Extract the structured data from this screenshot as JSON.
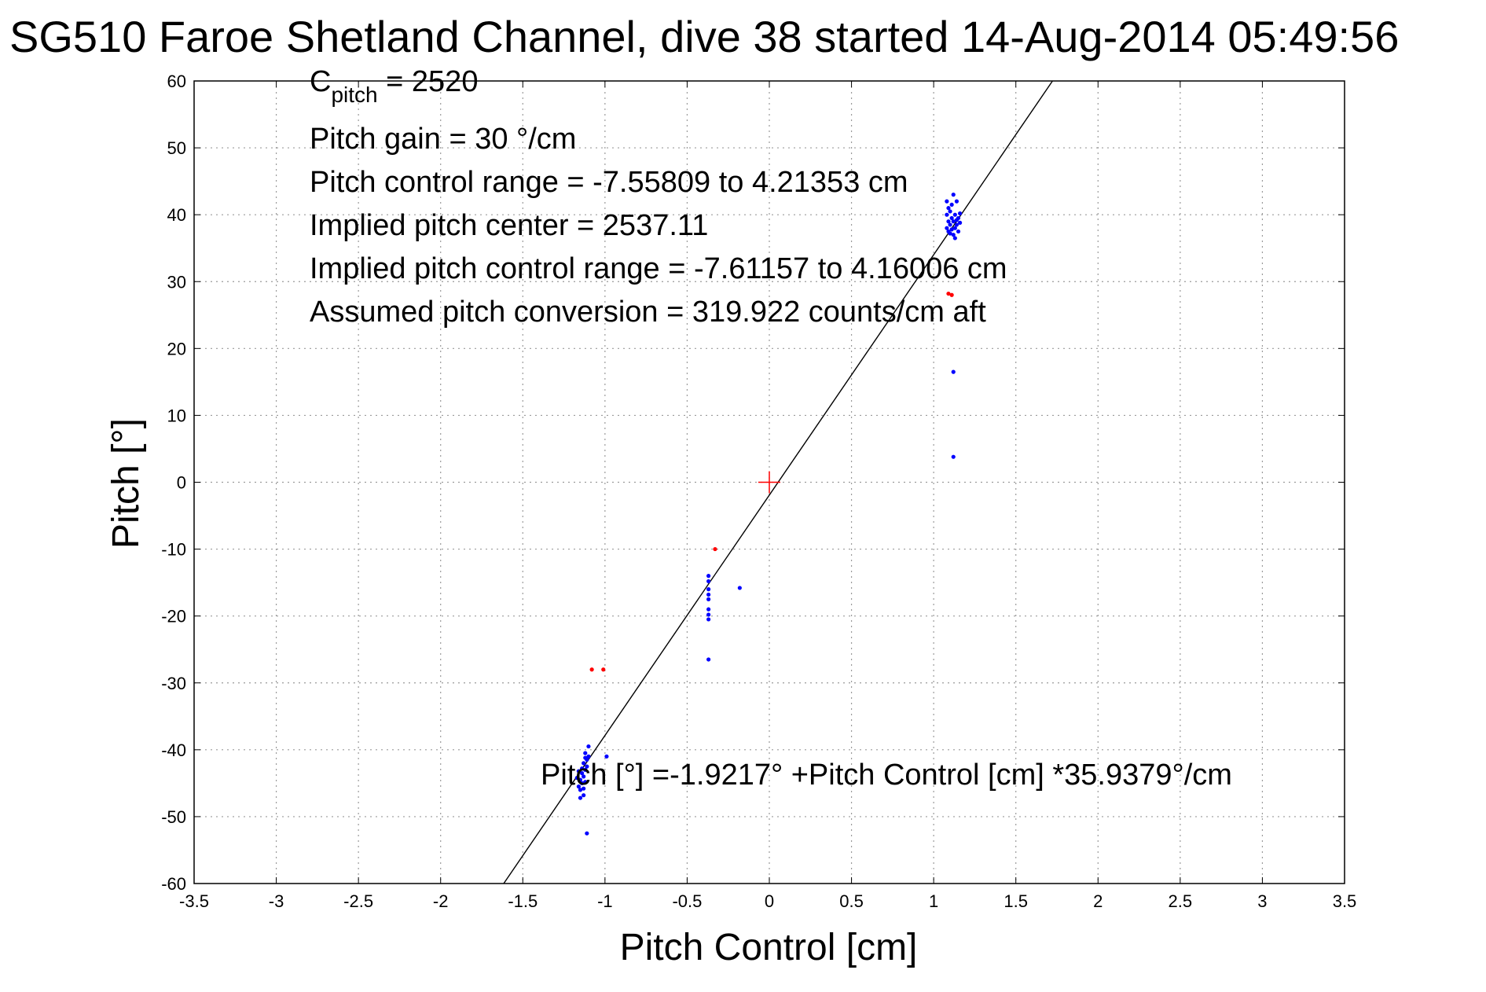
{
  "chart_data": {
    "type": "scatter",
    "title": "SG510 Faroe Shetland Channel, dive 38 started 14-Aug-2014 05:49:56",
    "xlabel": "Pitch Control [cm]",
    "ylabel": "Pitch [°]",
    "xlim": [
      -3.5,
      3.5
    ],
    "ylim": [
      -60,
      60
    ],
    "xticks": [
      -3.5,
      -3,
      -2.5,
      -2,
      -1.5,
      -1,
      -0.5,
      0,
      0.5,
      1,
      1.5,
      2,
      2.5,
      3,
      3.5
    ],
    "xtick_labels": [
      "-3.5",
      "-3",
      "-2.5",
      "-2",
      "-1.5",
      "-1",
      "-0.5",
      "0",
      "0.5",
      "1",
      "1.5",
      "2",
      "2.5",
      "3",
      "3.5"
    ],
    "yticks": [
      -60,
      -50,
      -40,
      -30,
      -20,
      -10,
      0,
      10,
      20,
      30,
      40,
      50,
      60
    ],
    "ytick_labels": [
      "-60",
      "-50",
      "-40",
      "-30",
      "-20",
      "-10",
      "0",
      "10",
      "20",
      "30",
      "40",
      "50",
      "60"
    ],
    "grid": true,
    "annotations": {
      "c_pitch_main": "C",
      "c_pitch_sub": "pitch",
      "c_pitch_value": " = 2520",
      "pitch_gain": "Pitch gain = 30 °/cm",
      "control_range": "Pitch control range = -7.55809 to 4.21353 cm",
      "implied_center": "Implied pitch center = 2537.11",
      "implied_range": "Implied pitch control range = -7.61157 to 4.16006 cm",
      "conversion": "Assumed pitch conversion = 319.922 counts/cm aft",
      "fit_equation": "Pitch [°] =-1.9217° +Pitch Control [cm] *35.9379°/cm"
    },
    "fit_line": {
      "intercept": -1.9217,
      "slope": 35.9379,
      "color": "#000000"
    },
    "center_marker": {
      "x": 0,
      "y": 0,
      "color": "#ff0000"
    },
    "series": [
      {
        "color": "#0000ff",
        "points": [
          [
            1.08,
            42.0
          ],
          [
            1.09,
            41.0
          ],
          [
            1.08,
            40.0
          ],
          [
            1.09,
            39.0
          ],
          [
            1.08,
            38.0
          ],
          [
            1.09,
            37.5
          ],
          [
            1.1,
            40.5
          ],
          [
            1.11,
            39.5
          ],
          [
            1.1,
            38.5
          ],
          [
            1.11,
            37.8
          ],
          [
            1.12,
            43.0
          ],
          [
            1.12,
            39.0
          ],
          [
            1.13,
            38.0
          ],
          [
            1.13,
            40.0
          ],
          [
            1.14,
            42.0
          ],
          [
            1.14,
            38.5
          ],
          [
            1.15,
            39.5
          ],
          [
            1.15,
            37.5
          ],
          [
            1.16,
            38.8
          ],
          [
            1.12,
            37.0
          ],
          [
            1.13,
            36.5
          ],
          [
            1.11,
            41.5
          ],
          [
            1.1,
            37.2
          ],
          [
            1.14,
            39.2
          ],
          [
            1.16,
            40.2
          ],
          [
            1.12,
            16.5
          ],
          [
            1.12,
            3.8
          ],
          [
            -0.37,
            -14.0
          ],
          [
            -0.37,
            -14.8
          ],
          [
            -0.37,
            -16.0
          ],
          [
            -0.37,
            -16.8
          ],
          [
            -0.37,
            -17.5
          ],
          [
            -0.37,
            -19.0
          ],
          [
            -0.37,
            -19.8
          ],
          [
            -0.37,
            -20.5
          ],
          [
            -0.37,
            -26.5
          ],
          [
            -0.18,
            -15.8
          ],
          [
            -1.1,
            -39.5
          ],
          [
            -1.12,
            -40.5
          ],
          [
            -1.11,
            -41.5
          ],
          [
            -1.13,
            -42.0
          ],
          [
            -1.12,
            -43.0
          ],
          [
            -1.14,
            -43.5
          ],
          [
            -1.13,
            -44.0
          ],
          [
            -1.15,
            -44.5
          ],
          [
            -1.14,
            -45.0
          ],
          [
            -1.16,
            -45.5
          ],
          [
            -1.15,
            -46.0
          ],
          [
            -1.12,
            -44.8
          ],
          [
            -1.11,
            -42.5
          ],
          [
            -1.17,
            -44.2
          ],
          [
            -1.16,
            -43.2
          ],
          [
            -1.1,
            -41.0
          ],
          [
            -1.13,
            -45.8
          ],
          [
            -1.15,
            -47.2
          ],
          [
            -1.13,
            -46.8
          ],
          [
            -1.11,
            -52.5
          ],
          [
            -0.99,
            -41.0
          ],
          [
            -1.14,
            -42.8
          ],
          [
            -1.12,
            -41.2
          ]
        ]
      },
      {
        "color": "#ff0000",
        "points": [
          [
            1.09,
            28.2
          ],
          [
            1.11,
            28.0
          ],
          [
            -0.33,
            -10.0
          ],
          [
            -1.08,
            -28.0
          ],
          [
            -1.01,
            -28.0
          ]
        ]
      }
    ]
  }
}
